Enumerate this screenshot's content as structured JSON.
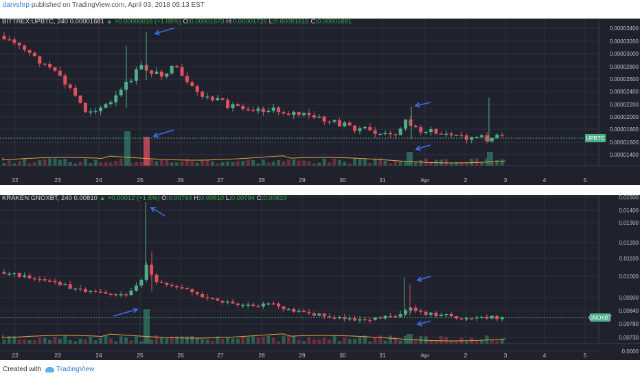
{
  "header": {
    "author": "darvshrp",
    "text": "published on TradingView.com, April 03, 2018 05:13 EST"
  },
  "chart1": {
    "symbol": "BITTREX:UPBTC, 240",
    "last": "0.00001681",
    "change": "▲ +0.00000018 (+1.08%)",
    "o": "0.00001673",
    "h": "0.00001726",
    "l": "0.00001616",
    "c": "0.00001681",
    "o_label": "O:",
    "h_label": "H:",
    "l_label": "L:",
    "c_label": "C:",
    "price_labels": [
      "0.00003400",
      "0.00003200",
      "0.00003000",
      "0.00002800",
      "0.00002600",
      "0.00002400",
      "0.00002200",
      "0.00002000",
      "0.00001800",
      "0.00001600",
      "0.00001400"
    ],
    "x_labels": [
      "22",
      "23",
      "24",
      "25",
      "26",
      "27",
      "28",
      "29",
      "30",
      "31",
      "Apr",
      "2",
      "3",
      "4",
      "5"
    ],
    "tag": "UPBTC"
  },
  "chart2": {
    "symbol": "KRAKEN:GNOXBT, 240",
    "last": "0.00810",
    "change": "▲ +0.00012 (+1.5%)",
    "o": "0.00794",
    "h": "0.00810",
    "l": "0.00794",
    "c": "0.00810",
    "o_label": "O:",
    "h_label": "H:",
    "l_label": "L:",
    "c_label": "C:",
    "price_labels": [
      "0.01500",
      "0.01400",
      "0.01300",
      "0.01200",
      "0.01100",
      "0.01000",
      "0.00900",
      "0.00840",
      "0.00780",
      "0.00730",
      "0.0000"
    ],
    "x_labels": [
      "22",
      "23",
      "24",
      "25",
      "26",
      "27",
      "28",
      "29",
      "30",
      "31",
      "Apr",
      "2",
      "3",
      "4",
      "5"
    ],
    "tag": "GNOXBT"
  },
  "footer": {
    "created": "Created with",
    "brand": "TradingView"
  },
  "colors": {
    "bg": "#1f222c",
    "up": "#4caf8a",
    "down": "#e0505e",
    "arrow": "#3e6ff0",
    "grid": "#2f3340",
    "ma": "#e8a040"
  }
}
